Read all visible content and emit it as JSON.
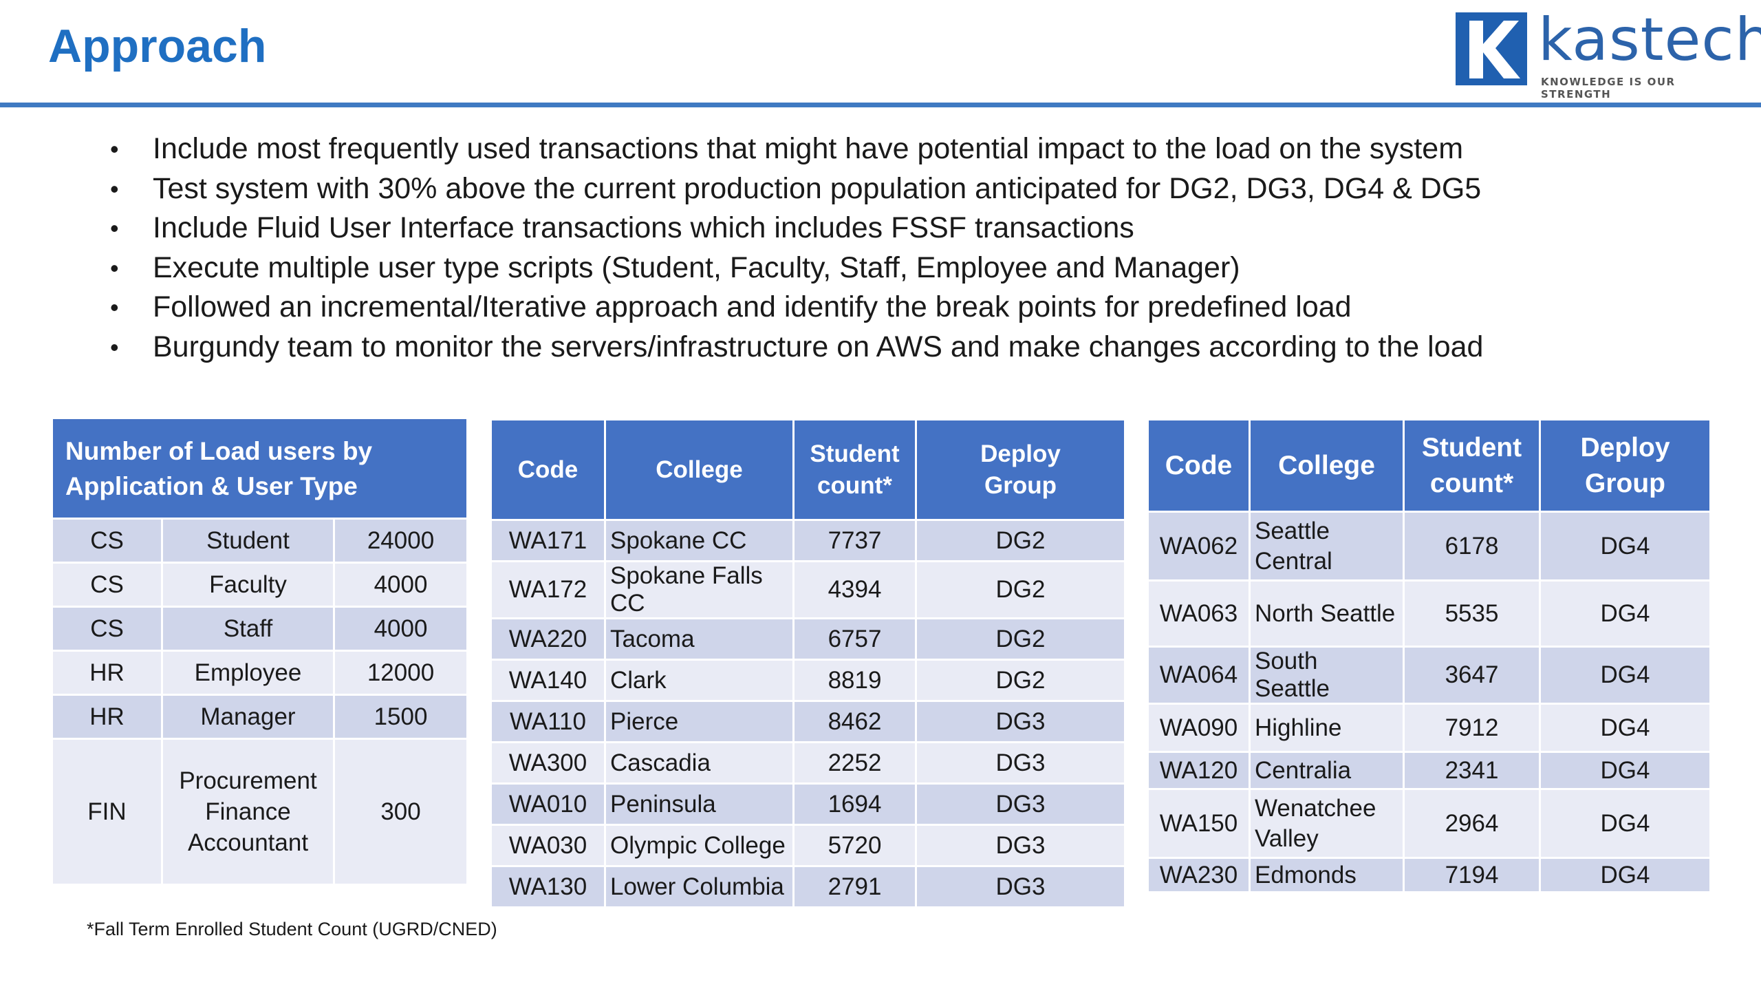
{
  "slide": {
    "title": "Approach",
    "logo": {
      "letter": "K",
      "name": "kastech",
      "tagline": "KNOWLEDGE IS OUR STRENGTH"
    },
    "bullets": [
      "Include most frequently used transactions that might have potential impact to the load on the system",
      "Test system with 30% above the current production population anticipated for DG2, DG3, DG4 & DG5",
      "Include Fluid User Interface transactions which includes FSSF transactions",
      "Execute multiple user type scripts (Student, Faculty, Staff, Employee and Manager)",
      "Followed an incremental/Iterative approach and identify the break points for predefined load",
      "Burgundy team to monitor the servers/infrastructure on AWS and make changes according to the load"
    ],
    "bullet_glyph": "•"
  },
  "load_table": {
    "header_line1": "Number of Load users by",
    "header_line2": "Application & User Type",
    "rows": [
      {
        "app": "CS",
        "type": "Student",
        "count": "24000"
      },
      {
        "app": "CS",
        "type": "Faculty",
        "count": "4000"
      },
      {
        "app": "CS",
        "type": "Staff",
        "count": "4000"
      },
      {
        "app": "HR",
        "type": "Employee",
        "count": "12000"
      },
      {
        "app": "HR",
        "type": "Manager",
        "count": "1500"
      },
      {
        "app": "FIN",
        "type_line1": "Procurement",
        "type_line2": "Finance",
        "type_line3": "Accountant",
        "count": "300"
      }
    ]
  },
  "college_table_1": {
    "headers": {
      "code": "Code",
      "college": "College",
      "count_line1": "Student",
      "count_line2": "count*",
      "group_line1": "Deploy",
      "group_line2": "Group"
    },
    "rows": [
      {
        "code": "WA171",
        "college": "Spokane CC",
        "count": "7737",
        "group": "DG2"
      },
      {
        "code": "WA172",
        "college": "Spokane Falls CC",
        "count": "4394",
        "group": "DG2"
      },
      {
        "code": "WA220",
        "college": "Tacoma",
        "count": "6757",
        "group": "DG2"
      },
      {
        "code": "WA140",
        "college": "Clark",
        "count": "8819",
        "group": "DG2"
      },
      {
        "code": "WA110",
        "college": "Pierce",
        "count": "8462",
        "group": "DG3"
      },
      {
        "code": "WA300",
        "college": "Cascadia",
        "count": "2252",
        "group": "DG3"
      },
      {
        "code": "WA010",
        "college": "Peninsula",
        "count": "1694",
        "group": "DG3"
      },
      {
        "code": "WA030",
        "college": "Olympic College",
        "count": "5720",
        "group": "DG3"
      },
      {
        "code": "WA130",
        "college": "Lower Columbia",
        "count": "2791",
        "group": "DG3"
      }
    ]
  },
  "college_table_2": {
    "headers": {
      "code": "Code",
      "college": "College",
      "count_line1": "Student",
      "count_line2": "count*",
      "group_line1": "Deploy",
      "group_line2": "Group"
    },
    "rows": [
      {
        "code": "WA062",
        "college_line1": "Seattle",
        "college_line2": "Central",
        "count": "6178",
        "group": "DG4"
      },
      {
        "code": "WA063",
        "college": "North Seattle",
        "count": "5535",
        "group": "DG4"
      },
      {
        "code": "WA064",
        "college": "South Seattle",
        "count": "3647",
        "group": "DG4"
      },
      {
        "code": "WA090",
        "college": "Highline",
        "count": "7912",
        "group": "DG4"
      },
      {
        "code": "WA120",
        "college": "Centralia",
        "count": "2341",
        "group": "DG4"
      },
      {
        "code": "WA150",
        "college_line1": "Wenatchee",
        "college_line2": "Valley",
        "count": "2964",
        "group": "DG4"
      },
      {
        "code": "WA230",
        "college": "Edmonds",
        "count": "7194",
        "group": "DG4"
      }
    ]
  },
  "footnote": "*Fall Term Enrolled Student Count (UGRD/CNED)",
  "colors": {
    "title": "#1f6fc2",
    "rule": "#3f7ac2",
    "table_header": "#4472c4",
    "row_dark": "#cfd5ea",
    "row_light": "#e9ebf5",
    "logo": "#2060b0"
  }
}
